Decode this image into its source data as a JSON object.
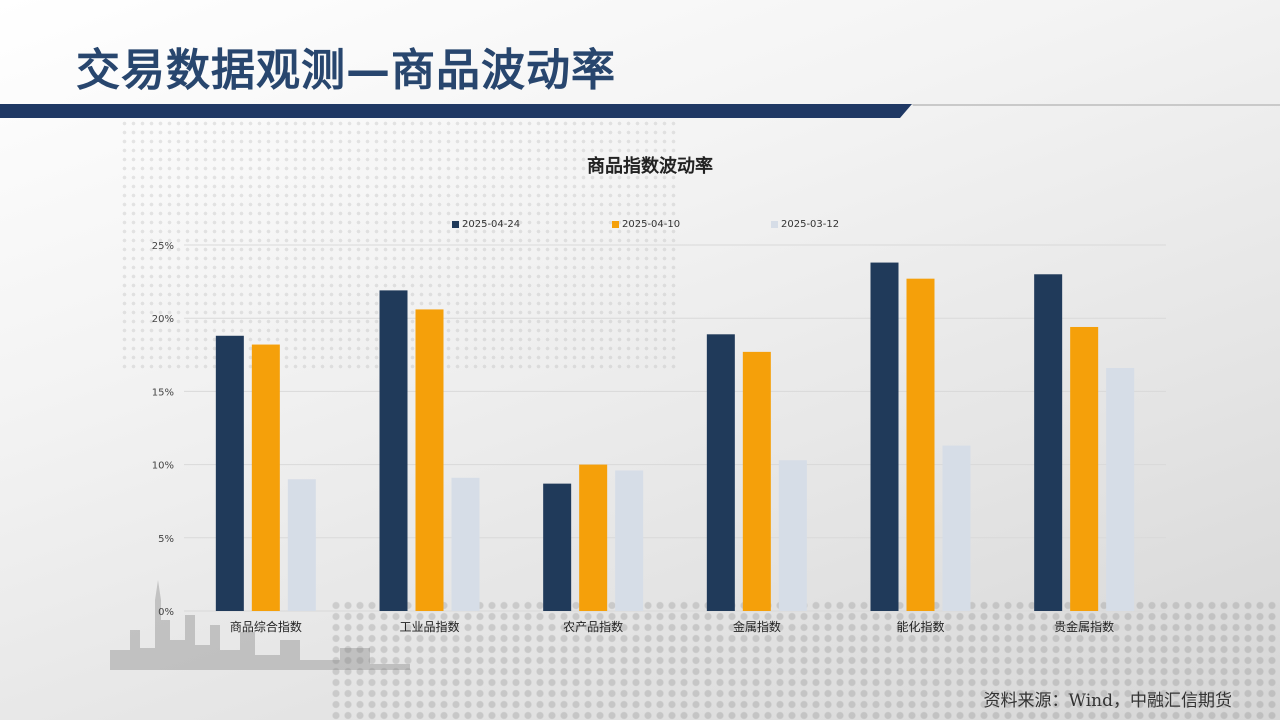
{
  "header": {
    "title": "交易数据观测—商品波动率"
  },
  "footer": {
    "source": "资料来源：Wind，中融汇信期货"
  },
  "colors": {
    "title": "#28466e",
    "rule": "#1f3864",
    "series": [
      "#203a5a",
      "#f5a00a",
      "#d6dde7"
    ]
  },
  "chart_data": {
    "type": "bar",
    "title": "商品指数波动率",
    "categories": [
      "商品综合指数",
      "工业品指数",
      "农产品指数",
      "金属指数",
      "能化指数",
      "贵金属指数"
    ],
    "series": [
      {
        "name": "2025-04-24",
        "values": [
          18.8,
          21.9,
          8.7,
          18.9,
          23.8,
          23.0
        ]
      },
      {
        "name": "2025-04-10",
        "values": [
          18.2,
          20.6,
          10.0,
          17.7,
          22.7,
          19.4
        ]
      },
      {
        "name": "2025-03-12",
        "values": [
          9.0,
          9.1,
          9.6,
          10.3,
          11.3,
          16.6
        ]
      }
    ],
    "ylim": [
      0,
      25
    ],
    "yticks": [
      "0%",
      "5%",
      "10%",
      "15%",
      "20%",
      "25%"
    ],
    "grid": true,
    "legend": "top"
  }
}
